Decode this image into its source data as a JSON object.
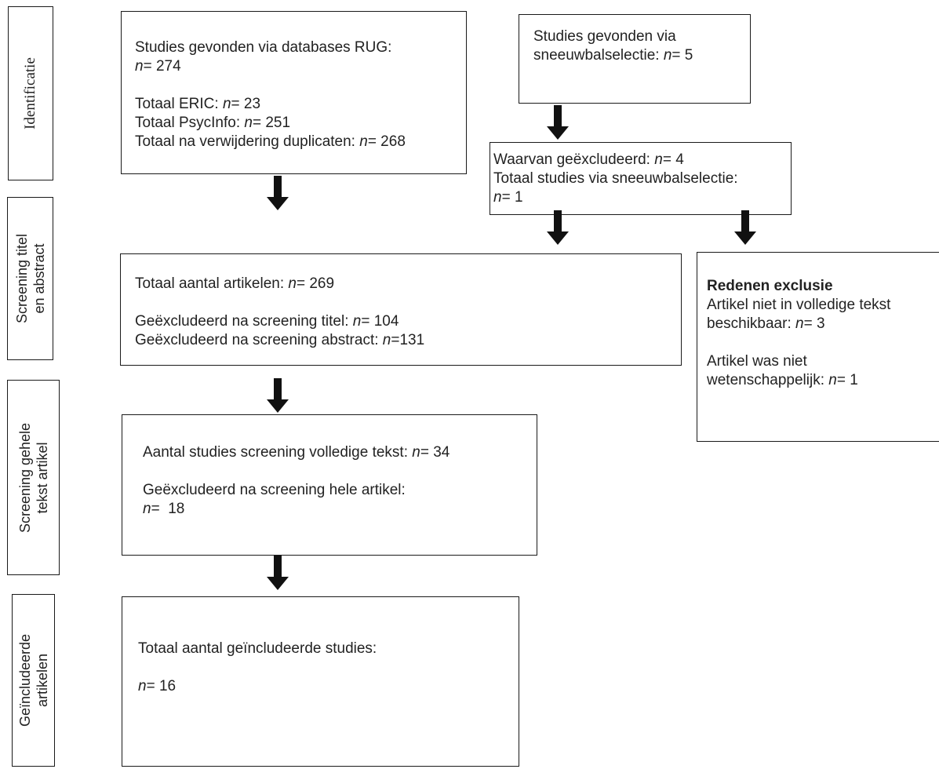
{
  "stages": {
    "identificatie": "Identificatie",
    "screening_titel": [
      "Screening titel",
      "en abstract"
    ],
    "screening_tekst": [
      "Screening gehele",
      "tekst artikel"
    ],
    "geincludeerde": [
      "Geïncludeerde",
      "artikelen"
    ]
  },
  "boxes": {
    "databases": {
      "line1": "Studies gevonden via databases RUG:",
      "line2_n": "n",
      "line2_rest": "= 274",
      "eric_label": "Totaal ERIC: ",
      "eric_n": "n",
      "eric_rest": "= 23",
      "psyc_label": "Totaal PsycInfo: ",
      "psyc_n": "n",
      "psyc_rest": "= 251",
      "dup_label": "Totaal na verwijdering duplicaten: ",
      "dup_n": "n",
      "dup_rest": "= 268"
    },
    "sneeuwbal": {
      "line1": "Studies gevonden via",
      "line2_label": "sneeuwbalselectie: ",
      "line2_n": "n",
      "line2_rest": "= 5"
    },
    "waarvan": {
      "line1_label": "Waarvan geëxcludeerd: ",
      "line1_n": "n",
      "line1_rest": "= 4",
      "line2": "Totaal studies via sneeuwbalselectie:",
      "line3_n": "n",
      "line3_rest": "= 1"
    },
    "totaal_artikelen": {
      "line1_label": "Totaal aantal artikelen: ",
      "line1_n": "n",
      "line1_rest": "= 269",
      "line2_label": "Geëxcludeerd na screening titel: ",
      "line2_n": "n",
      "line2_rest": "= 104",
      "line3_label": "Geëxcludeerd na screening abstract: ",
      "line3_n": "n",
      "line3_rest": "=131"
    },
    "redenen": {
      "title": "Redenen exclusie",
      "line1": "Artikel niet in volledige tekst",
      "line2_label": "beschikbaar: ",
      "line2_n": "n",
      "line2_rest": "= 3",
      "line3": "Artikel was niet",
      "line4_label": "wetenschappelijk: ",
      "line4_n": "n",
      "line4_rest": "= 1"
    },
    "volledige_tekst": {
      "line1_label": "Aantal studies screening volledige tekst: ",
      "line1_n": "n",
      "line1_rest": "= 34",
      "line2": "Geëxcludeerd na screening hele artikel:",
      "line3_n": "n",
      "line3_rest": "=  18"
    },
    "geincludeerd": {
      "line1": "Totaal aantal geïncludeerde studies:",
      "line2_n": "n",
      "line2_rest": "= 16"
    }
  }
}
